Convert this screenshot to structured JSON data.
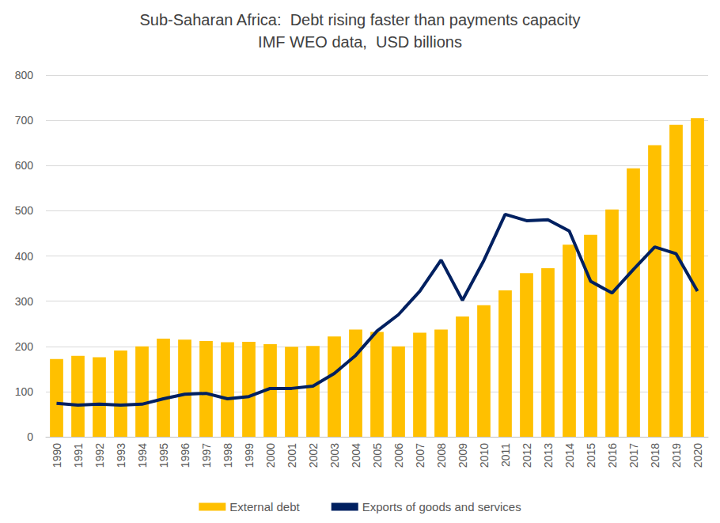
{
  "chart_data": {
    "type": "bar",
    "title": "Sub-Saharan Africa:  Debt rising faster than payments capacity",
    "subtitle": "IMF WEO data,  USD billions",
    "categories": [
      "1990",
      "1991",
      "1992",
      "1993",
      "1994",
      "1995",
      "1996",
      "1997",
      "1998",
      "1999",
      "2000",
      "2001",
      "2002",
      "2003",
      "2004",
      "2005",
      "2006",
      "2007",
      "2008",
      "2009",
      "2010",
      "2011",
      "2012",
      "2013",
      "2014",
      "2015",
      "2016",
      "2017",
      "2018",
      "2019",
      "2020"
    ],
    "series": [
      {
        "name": "External debt",
        "type": "bar",
        "color": "#FFC000",
        "values": [
          172,
          179,
          176,
          191,
          200,
          217,
          215,
          212,
          209,
          210,
          205,
          199,
          201,
          222,
          237,
          232,
          200,
          230,
          237,
          266,
          291,
          324,
          362,
          373,
          425,
          447,
          503,
          594,
          645,
          690,
          705
        ]
      },
      {
        "name": "Exports of goods and services",
        "type": "line",
        "color": "#002060",
        "values": [
          74,
          70,
          72,
          70,
          72,
          84,
          94,
          96,
          84,
          89,
          107,
          107,
          112,
          140,
          180,
          234,
          270,
          322,
          391,
          302,
          390,
          492,
          478,
          480,
          455,
          344,
          318,
          370,
          420,
          405,
          322
        ]
      }
    ],
    "ylim": [
      0,
      800
    ],
    "yticks": [
      0,
      100,
      200,
      300,
      400,
      500,
      600,
      700,
      800
    ],
    "grid": true,
    "legend": "bottom"
  }
}
